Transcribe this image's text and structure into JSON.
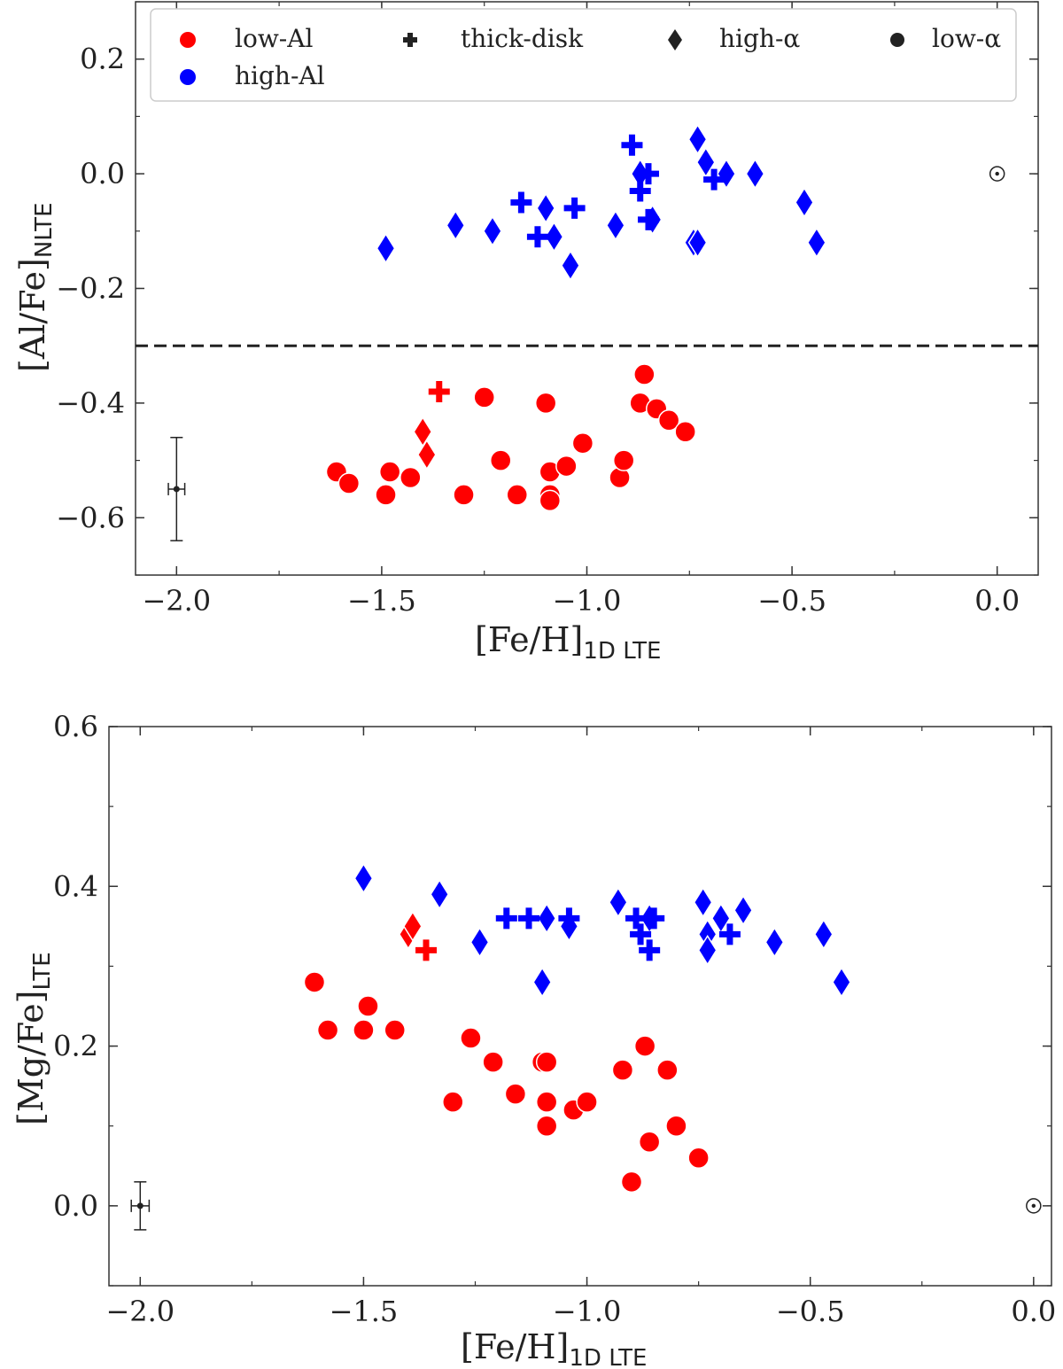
{
  "chart_data": [
    {
      "type": "scatter",
      "title": "",
      "xlabel": "[Fe/H]",
      "xlabel_sub": "1D LTE",
      "ylabel": "[Al/Fe]",
      "ylabel_sub": "NLTE",
      "xlim": [
        -2.1,
        0.1
      ],
      "ylim": [
        -0.7,
        0.3
      ],
      "xticks": [
        -2.0,
        -1.5,
        -1.0,
        -0.5,
        0.0
      ],
      "xtick_labels": [
        "−2.0",
        "−1.5",
        "−1.0",
        "−0.5",
        "0.0"
      ],
      "yticks": [
        -0.6,
        -0.4,
        -0.2,
        0.0,
        0.2
      ],
      "ytick_labels": [
        "−0.6",
        "−0.4",
        "−0.2",
        "0.0",
        "0.2"
      ],
      "threshold_line": -0.3,
      "sun": [
        0.0,
        0.0
      ],
      "error_bar": {
        "x": -2.0,
        "y": -0.55,
        "xerr": 0.02,
        "yerr": 0.09
      },
      "legend": {
        "placement": "top",
        "entries": [
          {
            "label": "low-Al",
            "marker": "circle",
            "color": "#ff0000"
          },
          {
            "label": "thick-disk",
            "marker": "plus",
            "color": "#222222"
          },
          {
            "label": "high-α",
            "marker": "diamond",
            "color": "#222222"
          },
          {
            "label": "low-α",
            "marker": "circle",
            "color": "#222222"
          },
          {
            "label": "high-Al",
            "marker": "circle",
            "color": "#0000ff"
          }
        ]
      },
      "series": [
        {
          "name": "high-Al high-α",
          "color": "#0000ff",
          "marker": "diamond",
          "points": [
            [
              -1.49,
              -0.13
            ],
            [
              -1.32,
              -0.09
            ],
            [
              -1.23,
              -0.1
            ],
            [
              -1.1,
              -0.06
            ],
            [
              -1.08,
              -0.11
            ],
            [
              -1.04,
              -0.16
            ],
            [
              -0.93,
              -0.09
            ],
            [
              -0.87,
              0.0
            ],
            [
              -0.84,
              -0.08
            ],
            [
              -0.74,
              -0.12
            ],
            [
              -0.73,
              -0.12
            ],
            [
              -0.73,
              0.06
            ],
            [
              -0.71,
              0.02
            ],
            [
              -0.66,
              0.0
            ],
            [
              -0.59,
              0.0
            ],
            [
              -0.47,
              -0.05
            ],
            [
              -0.44,
              -0.12
            ]
          ]
        },
        {
          "name": "high-Al thick-disk",
          "color": "#0000ff",
          "marker": "plus",
          "points": [
            [
              -1.16,
              -0.05
            ],
            [
              -1.12,
              -0.11
            ],
            [
              -1.03,
              -0.06
            ],
            [
              -0.89,
              0.05
            ],
            [
              -0.87,
              -0.03
            ],
            [
              -0.85,
              0.0
            ],
            [
              -0.85,
              -0.08
            ],
            [
              -0.69,
              -0.01
            ]
          ]
        },
        {
          "name": "low-Al low-α",
          "color": "#ff0000",
          "marker": "circle",
          "points": [
            [
              -1.61,
              -0.52
            ],
            [
              -1.58,
              -0.54
            ],
            [
              -1.49,
              -0.56
            ],
            [
              -1.48,
              -0.52
            ],
            [
              -1.43,
              -0.53
            ],
            [
              -1.3,
              -0.56
            ],
            [
              -1.25,
              -0.39
            ],
            [
              -1.21,
              -0.5
            ],
            [
              -1.17,
              -0.56
            ],
            [
              -1.1,
              -0.4
            ],
            [
              -1.09,
              -0.52
            ],
            [
              -1.09,
              -0.56
            ],
            [
              -1.09,
              -0.57
            ],
            [
              -1.05,
              -0.51
            ],
            [
              -1.01,
              -0.47
            ],
            [
              -0.92,
              -0.53
            ],
            [
              -0.91,
              -0.5
            ],
            [
              -0.87,
              -0.4
            ],
            [
              -0.86,
              -0.35
            ],
            [
              -0.83,
              -0.41
            ],
            [
              -0.8,
              -0.43
            ],
            [
              -0.76,
              -0.45
            ]
          ]
        },
        {
          "name": "low-Al high-α",
          "color": "#ff0000",
          "marker": "diamond",
          "points": [
            [
              -1.4,
              -0.45
            ],
            [
              -1.39,
              -0.49
            ]
          ]
        },
        {
          "name": "low-Al thick-disk",
          "color": "#ff0000",
          "marker": "plus",
          "points": [
            [
              -1.36,
              -0.38
            ]
          ]
        }
      ]
    },
    {
      "type": "scatter",
      "title": "",
      "xlabel": "[Fe/H]",
      "xlabel_sub": "1D LTE",
      "ylabel": "[Mg/Fe]",
      "ylabel_sub": "LTE",
      "xlim": [
        -2.07,
        0.04
      ],
      "ylim": [
        -0.1,
        0.6
      ],
      "xticks": [
        -2.0,
        -1.5,
        -1.0,
        -0.5,
        0.0
      ],
      "xtick_labels": [
        "−2.0",
        "−1.5",
        "−1.0",
        "−0.5",
        "0.0"
      ],
      "yticks": [
        0.0,
        0.2,
        0.4,
        0.6
      ],
      "ytick_labels": [
        "0.0",
        "0.2",
        "0.4",
        "0.6"
      ],
      "sun": [
        0.0,
        0.0
      ],
      "error_bar": {
        "x": -2.0,
        "y": 0.0,
        "xerr": 0.02,
        "yerr": 0.03
      },
      "series": [
        {
          "name": "high-Al high-α",
          "color": "#0000ff",
          "marker": "diamond",
          "points": [
            [
              -1.5,
              0.41
            ],
            [
              -1.33,
              0.39
            ],
            [
              -1.24,
              0.33
            ],
            [
              -1.1,
              0.28
            ],
            [
              -1.09,
              0.36
            ],
            [
              -1.04,
              0.35
            ],
            [
              -0.93,
              0.38
            ],
            [
              -0.86,
              0.36
            ],
            [
              -0.74,
              0.38
            ],
            [
              -0.73,
              0.34
            ],
            [
              -0.73,
              0.32
            ],
            [
              -0.7,
              0.36
            ],
            [
              -0.65,
              0.37
            ],
            [
              -0.58,
              0.33
            ],
            [
              -0.47,
              0.34
            ],
            [
              -0.43,
              0.28
            ]
          ]
        },
        {
          "name": "high-Al thick-disk",
          "color": "#0000ff",
          "marker": "plus",
          "points": [
            [
              -1.18,
              0.36
            ],
            [
              -1.13,
              0.36
            ],
            [
              -1.04,
              0.36
            ],
            [
              -0.89,
              0.36
            ],
            [
              -0.88,
              0.34
            ],
            [
              -0.86,
              0.32
            ],
            [
              -0.85,
              0.36
            ],
            [
              -0.68,
              0.34
            ]
          ]
        },
        {
          "name": "low-Al low-α",
          "color": "#ff0000",
          "marker": "circle",
          "points": [
            [
              -1.61,
              0.28
            ],
            [
              -1.58,
              0.22
            ],
            [
              -1.49,
              0.25
            ],
            [
              -1.5,
              0.22
            ],
            [
              -1.43,
              0.22
            ],
            [
              -1.3,
              0.13
            ],
            [
              -1.26,
              0.21
            ],
            [
              -1.21,
              0.18
            ],
            [
              -1.16,
              0.14
            ],
            [
              -1.1,
              0.18
            ],
            [
              -1.09,
              0.18
            ],
            [
              -1.09,
              0.13
            ],
            [
              -1.09,
              0.1
            ],
            [
              -1.03,
              0.12
            ],
            [
              -1.0,
              0.13
            ],
            [
              -0.92,
              0.17
            ],
            [
              -0.9,
              0.03
            ],
            [
              -0.87,
              0.2
            ],
            [
              -0.86,
              0.08
            ],
            [
              -0.82,
              0.17
            ],
            [
              -0.8,
              0.1
            ],
            [
              -0.75,
              0.06
            ]
          ]
        },
        {
          "name": "low-Al high-α",
          "color": "#ff0000",
          "marker": "diamond",
          "points": [
            [
              -1.4,
              0.34
            ],
            [
              -1.39,
              0.35
            ]
          ]
        },
        {
          "name": "low-Al thick-disk",
          "color": "#ff0000",
          "marker": "plus",
          "points": [
            [
              -1.36,
              0.32
            ]
          ]
        }
      ]
    }
  ]
}
